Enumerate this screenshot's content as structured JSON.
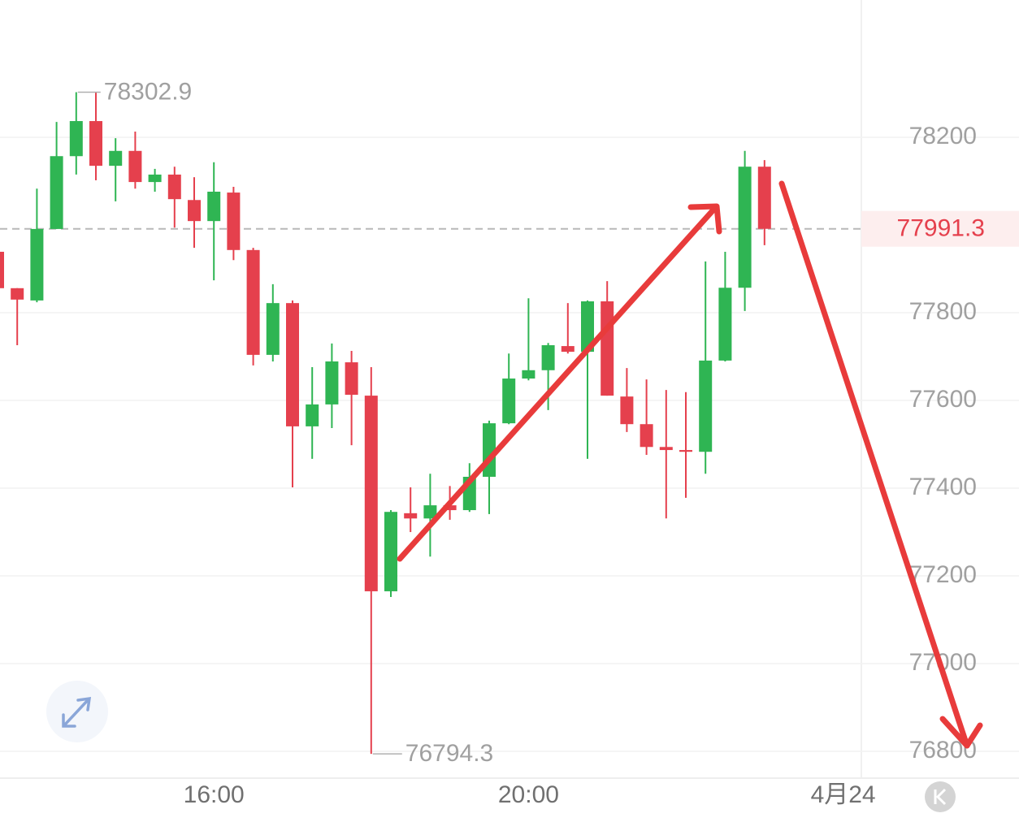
{
  "chart_data": {
    "type": "candlestick",
    "categories": [
      null,
      null,
      null,
      null,
      null,
      null,
      null,
      null,
      null,
      null,
      null,
      "16:00",
      null,
      null,
      null,
      null,
      null,
      null,
      null,
      null,
      null,
      null,
      null,
      null,
      null,
      null,
      null,
      "20:00",
      null,
      null,
      null,
      null,
      null,
      null,
      null,
      null,
      null,
      null,
      null,
      null,
      null,
      null,
      null,
      "4月24"
    ],
    "open": [
      77939,
      77856,
      77828,
      77991,
      78157,
      78237,
      78135,
      78169,
      78098,
      78115,
      78057,
      78009,
      78074,
      77943,
      77704,
      77822,
      77541,
      77591,
      77687,
      77611,
      77165,
      77343,
      77331,
      77361,
      77350,
      77426,
      77548,
      77650,
      77669,
      77724,
      77711,
      77826,
      77609,
      77546,
      77494,
      77487,
      77483,
      77691,
      77857,
      78133,
      null,
      null,
      null,
      null
    ],
    "high": [
      77939,
      77856,
      78083,
      78235,
      78302.9,
      78303,
      78198,
      78213,
      78128,
      78133,
      78109,
      78143,
      78087,
      77948,
      77865,
      77828,
      77676,
      77730,
      77713,
      77676,
      77350,
      77402,
      77433,
      77405,
      77457,
      77554,
      77707,
      77833,
      77731,
      77822,
      77828,
      77872,
      77674,
      77648,
      77624,
      77619,
      77917,
      77939,
      78169,
      78148,
      null,
      null,
      null,
      null
    ],
    "low": [
      77856,
      77726,
      77824,
      77991,
      78115,
      78102,
      78054,
      78083,
      78076,
      77994,
      77948,
      77874,
      77920,
      77680,
      77689,
      77402,
      77467,
      77537,
      77498,
      76794.3,
      77152,
      77300,
      77244,
      77328,
      77346,
      77341,
      77546,
      77646,
      77578,
      77707,
      77467,
      77611,
      77528,
      77476,
      77331,
      77378,
      77433,
      77689,
      77804,
      77954,
      null,
      null,
      null,
      null
    ],
    "close": [
      77856,
      77830,
      77991,
      78157,
      78237,
      78135,
      78169,
      78098,
      78115,
      78059,
      78009,
      78076,
      77943,
      77704,
      77822,
      77541,
      77591,
      77689,
      77613,
      77165,
      77346,
      77331,
      77361,
      77350,
      77426,
      77548,
      77650,
      77669,
      77726,
      77711,
      77826,
      77611,
      77546,
      77494,
      77487,
      77483,
      77691,
      77857,
      78133,
      77991.3,
      null,
      null,
      null,
      null
    ],
    "up_color": "#2fb553",
    "down_color": "#e5404d",
    "ylim": [
      76739,
      78513
    ],
    "yticks": [
      76800,
      77000,
      77200,
      77400,
      77600,
      77800,
      78200
    ],
    "grid": true,
    "max_value": 78302.9,
    "min_value": 76794.3,
    "last_price": 77991.3
  }
}
